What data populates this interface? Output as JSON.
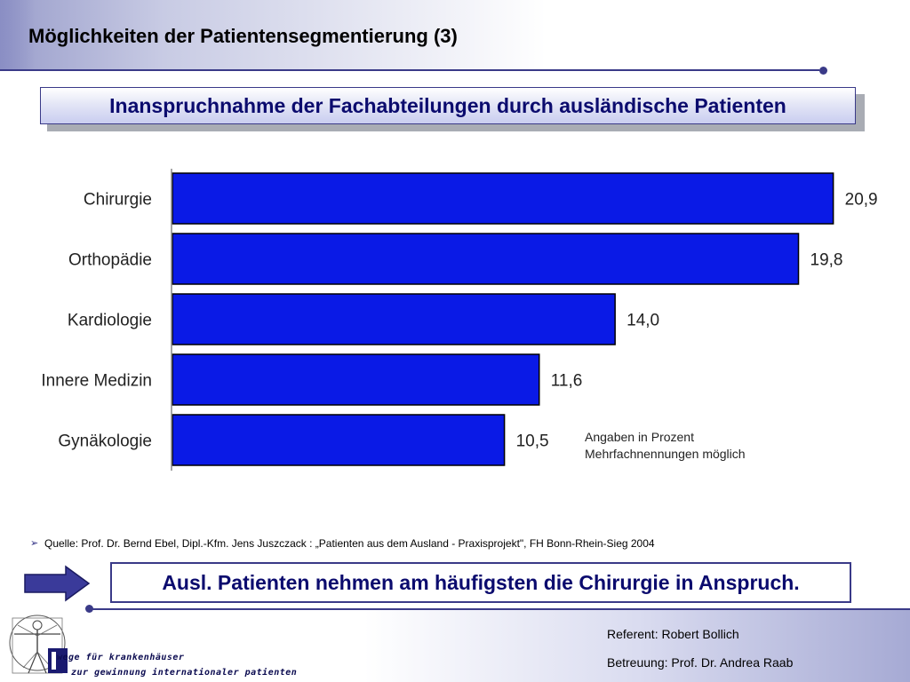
{
  "slide": {
    "title": "Möglichkeiten der Patientensegmentierung (3)",
    "subtitle": "Inanspruchnahme der Fachabteilungen durch ausländische Patienten"
  },
  "chart_data": {
    "type": "bar",
    "orientation": "horizontal",
    "categories": [
      "Chirurgie",
      "Orthopädie",
      "Kardiologie",
      "Innere Medizin",
      "Gynäkologie"
    ],
    "values": [
      20.9,
      19.8,
      14.0,
      11.6,
      10.5
    ],
    "value_labels": [
      "20,9",
      "19,8",
      "14,0",
      "11,6",
      "10,5"
    ],
    "bar_color": "#0a1ae6",
    "xlim": [
      0,
      21.5
    ],
    "grid": false,
    "annotation": [
      "Angaben in Prozent",
      "Mehrfachnennungen möglich"
    ]
  },
  "source": {
    "bullet": "➢",
    "text": "Quelle: Prof. Dr. Bernd Ebel, Dipl.-Kfm. Jens Juszczack : „Patienten aus dem Ausland - Praxisprojekt\", FH Bonn-Rhein-Sieg 2004"
  },
  "conclusion": "Ausl. Patienten nehmen am häufigsten die Chirurgie in Anspruch.",
  "footer": {
    "logo_line1": "wege für krankenhäuser",
    "logo_line2": "zur gewinnung internationaler patienten",
    "referent": "Referent: Robert Bollich",
    "betreuung": "Betreuung: Prof. Dr. Andrea Raab"
  },
  "colors": {
    "accent": "#3a3a88",
    "title_blue": "#0b0b6e",
    "bar": "#0a1ae6"
  }
}
